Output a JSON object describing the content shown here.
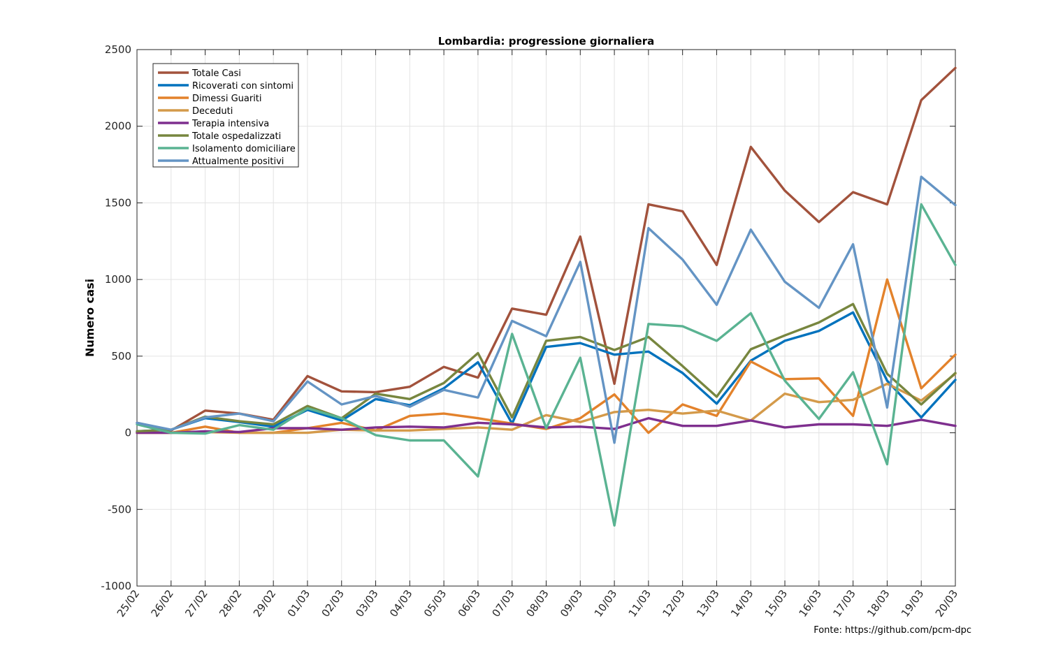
{
  "chart_data": {
    "type": "line",
    "title": "Lombardia: progressione giornaliera",
    "xlabel": "",
    "ylabel": "Numero casi",
    "ylim": [
      -1000,
      2500
    ],
    "yticks": [
      -1000,
      -500,
      0,
      500,
      1000,
      1500,
      2000,
      2500
    ],
    "grid": true,
    "legend_position": "top-left",
    "categories": [
      "25/02",
      "26/02",
      "27/02",
      "28/02",
      "29/02",
      "01/03",
      "02/03",
      "03/03",
      "04/03",
      "05/03",
      "06/03",
      "07/03",
      "08/03",
      "09/03",
      "10/03",
      "11/03",
      "12/03",
      "13/03",
      "14/03",
      "15/03",
      "16/03",
      "17/03",
      "18/03",
      "19/03",
      "20/03"
    ],
    "series": [
      {
        "name": "Totale Casi",
        "color": "#A2523C",
        "values": [
          65,
          15,
          145,
          125,
          85,
          370,
          270,
          265,
          300,
          430,
          360,
          810,
          770,
          1280,
          320,
          1490,
          1445,
          1095,
          1865,
          1580,
          1375,
          1570,
          1490,
          2170,
          2380
        ]
      },
      {
        "name": "Ricoverati con sintomi",
        "color": "#0072BD",
        "values": [
          10,
          20,
          95,
          70,
          40,
          150,
          80,
          220,
          180,
          290,
          460,
          60,
          560,
          585,
          510,
          530,
          390,
          190,
          470,
          600,
          665,
          785,
          340,
          100,
          345
        ]
      },
      {
        "name": "Dimessi Guariti",
        "color": "#E3822B",
        "values": [
          0,
          0,
          40,
          0,
          0,
          30,
          65,
          15,
          110,
          125,
          95,
          60,
          25,
          95,
          250,
          0,
          185,
          110,
          465,
          350,
          355,
          110,
          1000,
          290,
          510
        ]
      },
      {
        "name": "Deceduti",
        "color": "#D49A4A",
        "values": [
          0,
          0,
          5,
          0,
          0,
          0,
          20,
          15,
          15,
          25,
          35,
          20,
          115,
          70,
          135,
          150,
          125,
          145,
          80,
          255,
          200,
          215,
          320,
          210,
          385
        ]
      },
      {
        "name": "Terapia intensiva",
        "color": "#7E2F8E",
        "values": [
          0,
          0,
          10,
          5,
          30,
          30,
          20,
          35,
          40,
          35,
          65,
          55,
          35,
          40,
          25,
          95,
          45,
          45,
          80,
          35,
          55,
          55,
          45,
          85,
          45
        ]
      },
      {
        "name": "Totale ospedalizzati",
        "color": "#77863F",
        "values": [
          10,
          20,
          105,
          75,
          55,
          175,
          95,
          255,
          220,
          325,
          520,
          100,
          600,
          625,
          540,
          625,
          435,
          235,
          545,
          635,
          720,
          840,
          385,
          185,
          390
        ]
      },
      {
        "name": "Isolamento domiciliare",
        "color": "#5AB392",
        "values": [
          55,
          0,
          -5,
          50,
          20,
          160,
          95,
          -15,
          -50,
          -50,
          -285,
          645,
          30,
          490,
          -605,
          710,
          695,
          600,
          780,
          340,
          90,
          395,
          -205,
          1490,
          1095
        ]
      },
      {
        "name": "Attualmente positivi",
        "color": "#6494C4",
        "values": [
          65,
          20,
          100,
          125,
          75,
          335,
          185,
          240,
          170,
          280,
          230,
          730,
          630,
          1115,
          -65,
          1335,
          1130,
          835,
          1325,
          985,
          815,
          1230,
          165,
          1670,
          1485
        ]
      }
    ]
  },
  "footer": {
    "source": "Fonte: https://github.com/pcm-dpc"
  }
}
